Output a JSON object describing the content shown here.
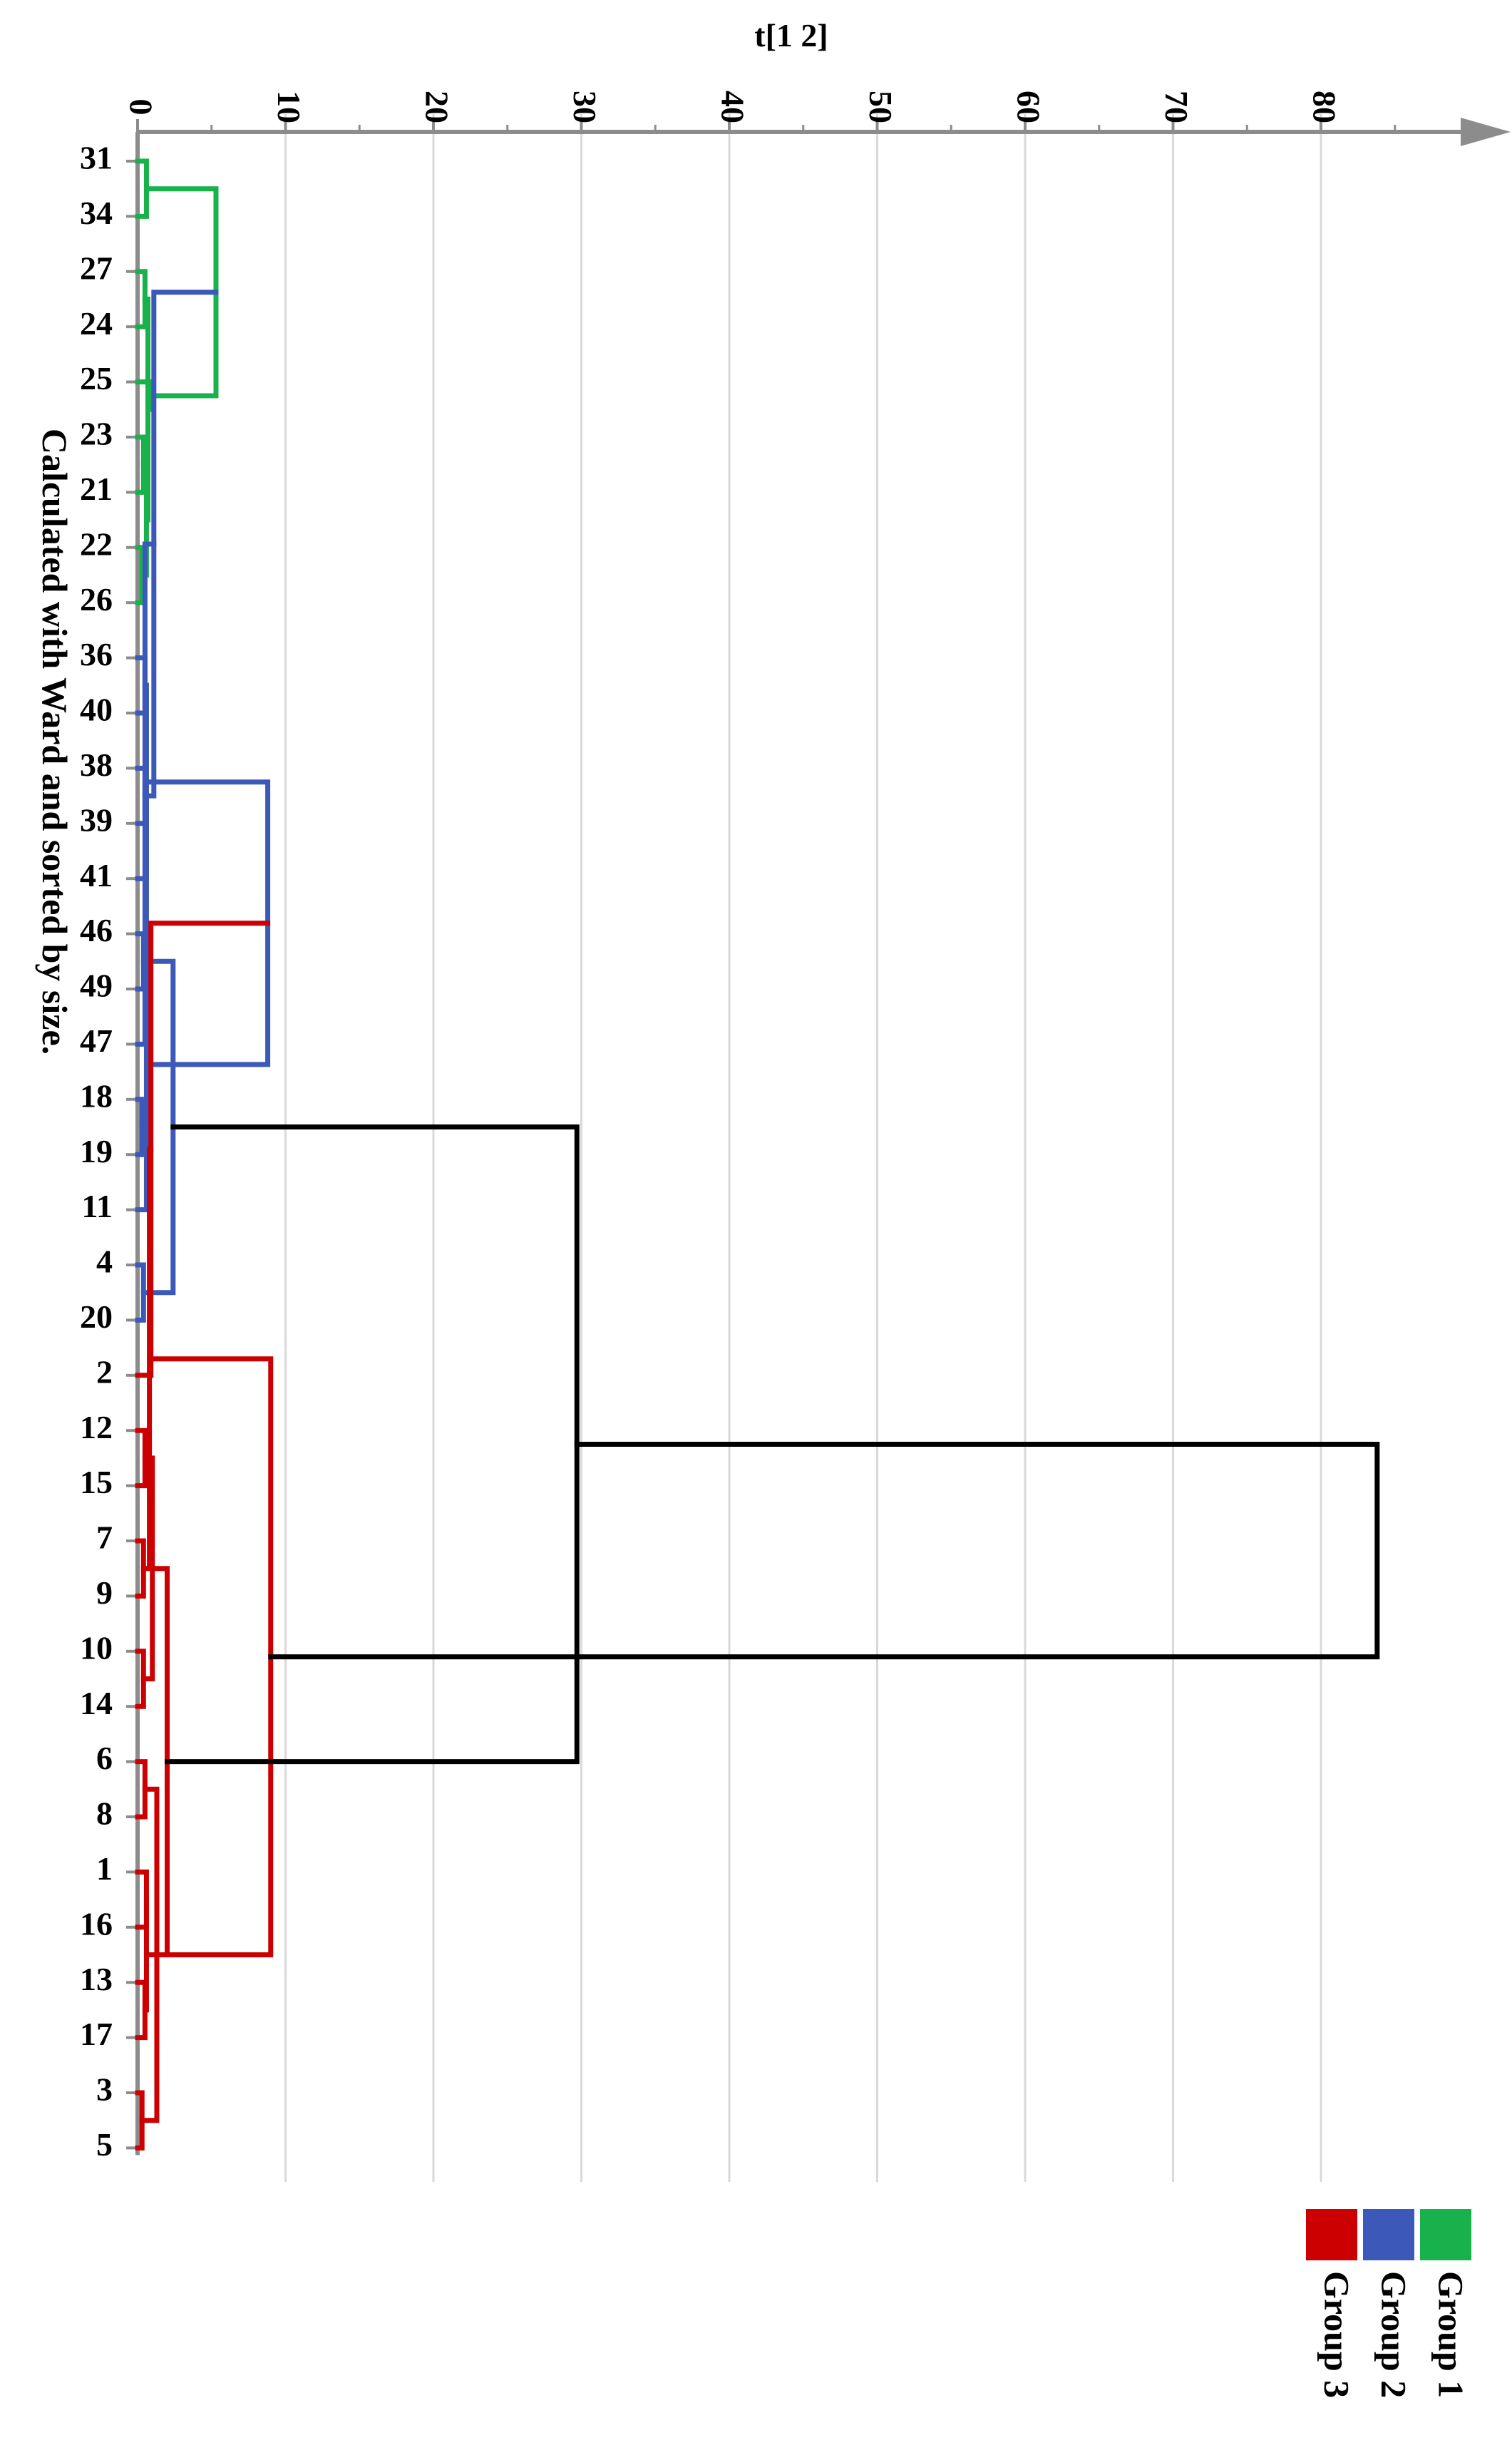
{
  "chart_data": {
    "type": "dendrogram",
    "method_note": "Calculated with Ward and sorted by size.",
    "axis_label": "t[1 2]",
    "axis_ticks": [
      0,
      10,
      20,
      30,
      40,
      50,
      60,
      70,
      80
    ],
    "axis_range": [
      0,
      88
    ],
    "leaves": [
      "31",
      "34",
      "27",
      "24",
      "25",
      "23",
      "21",
      "22",
      "26",
      "36",
      "40",
      "38",
      "39",
      "41",
      "46",
      "49",
      "47",
      "18",
      "19",
      "11",
      "4",
      "20",
      "2",
      "12",
      "15",
      "7",
      "9",
      "10",
      "14",
      "6",
      "8",
      "1",
      "16",
      "13",
      "17",
      "3",
      "5"
    ],
    "groups": [
      {
        "name": "Group 1",
        "color": "#19b14b",
        "leaves": [
          "31",
          "34",
          "27",
          "24",
          "25",
          "23",
          "21",
          "22",
          "26"
        ]
      },
      {
        "name": "Group 2",
        "color": "#3c58b8",
        "leaves": [
          "36",
          "40",
          "38",
          "39",
          "41",
          "46",
          "49",
          "47",
          "18",
          "19",
          "11",
          "4",
          "20"
        ]
      },
      {
        "name": "Group 3",
        "color": "#cc0000",
        "leaves": [
          "2",
          "12",
          "15",
          "7",
          "9",
          "10",
          "14",
          "6",
          "8",
          "1",
          "16",
          "13",
          "17",
          "3",
          "5"
        ]
      }
    ],
    "root_color": "#000000",
    "merges": [
      {
        "a": 0,
        "b": 1,
        "h": 0.6,
        "color": "#19b14b"
      },
      {
        "a": 2,
        "b": 3,
        "h": 0.5,
        "color": "#19b14b"
      },
      {
        "a": 5,
        "b": 6,
        "h": 0.4,
        "color": "#19b14b"
      },
      {
        "a": 7,
        "b": 8,
        "h": 0.3,
        "color": "#19b14b"
      },
      {
        "a": 39,
        "b": 40,
        "h": 0.6,
        "color": "#19b14b"
      },
      {
        "a": 38,
        "b": 41,
        "h": 0.7,
        "color": "#19b14b"
      },
      {
        "a": 4,
        "b": 42,
        "h": 1.0,
        "color": "#19b14b"
      },
      {
        "a": 37,
        "b": 43,
        "h": 5.3,
        "color": "#19b14b"
      },
      {
        "a": 9,
        "b": 10,
        "h": 0.5,
        "color": "#3c58b8"
      },
      {
        "a": 11,
        "b": 12,
        "h": 0.5,
        "color": "#3c58b8"
      },
      {
        "a": 45,
        "b": 13,
        "h": 0.6,
        "color": "#3c58b8"
      },
      {
        "a": 44,
        "b": 46,
        "h": 1.1,
        "color": "#3c58b8"
      },
      {
        "a": 14,
        "b": 15,
        "h": 0.4,
        "color": "#3c58b8"
      },
      {
        "a": 48,
        "b": 16,
        "h": 0.5,
        "color": "#3c58b8"
      },
      {
        "a": 17,
        "b": 18,
        "h": 0.3,
        "color": "#3c58b8"
      },
      {
        "a": 50,
        "b": 19,
        "h": 0.6,
        "color": "#3c58b8"
      },
      {
        "a": 20,
        "b": 21,
        "h": 0.4,
        "color": "#3c58b8"
      },
      {
        "a": 51,
        "b": 52,
        "h": 0.8,
        "color": "#3c58b8"
      },
      {
        "a": 49,
        "b": 53,
        "h": 2.4,
        "color": "#3c58b8"
      },
      {
        "a": 47,
        "b": 54,
        "h": 8.8,
        "color": "#3c58b8"
      },
      {
        "a": 23,
        "b": 24,
        "h": 0.5,
        "color": "#cc0000"
      },
      {
        "a": 22,
        "b": 56,
        "h": 0.9,
        "color": "#cc0000"
      },
      {
        "a": 25,
        "b": 26,
        "h": 0.4,
        "color": "#cc0000"
      },
      {
        "a": 27,
        "b": 28,
        "h": 0.4,
        "color": "#cc0000"
      },
      {
        "a": 58,
        "b": 59,
        "h": 0.8,
        "color": "#cc0000"
      },
      {
        "a": 57,
        "b": 60,
        "h": 1.0,
        "color": "#cc0000"
      },
      {
        "a": 29,
        "b": 30,
        "h": 0.5,
        "color": "#cc0000"
      },
      {
        "a": 31,
        "b": 32,
        "h": 0.6,
        "color": "#cc0000"
      },
      {
        "a": 33,
        "b": 34,
        "h": 0.5,
        "color": "#cc0000"
      },
      {
        "a": 35,
        "b": 36,
        "h": 0.3,
        "color": "#cc0000"
      },
      {
        "a": 64,
        "b": 65,
        "h": 0.6,
        "color": "#cc0000"
      },
      {
        "a": 63,
        "b": 66,
        "h": 1.3,
        "color": "#cc0000"
      },
      {
        "a": 62,
        "b": 67,
        "h": 2.0,
        "color": "#cc0000"
      },
      {
        "a": 61,
        "b": 68,
        "h": 9.0,
        "color": "#cc0000"
      },
      {
        "a": 55,
        "b": 69,
        "h": 29.7,
        "color": "#000000"
      },
      {
        "a": 70,
        "b": 71,
        "h": 83.8,
        "color": "#000000"
      }
    ]
  },
  "legend": {
    "items": [
      {
        "label": "Group 1",
        "color": "#19b14b"
      },
      {
        "label": "Group 2",
        "color": "#3c58b8"
      },
      {
        "label": "Group 3",
        "color": "#cc0000"
      }
    ]
  }
}
